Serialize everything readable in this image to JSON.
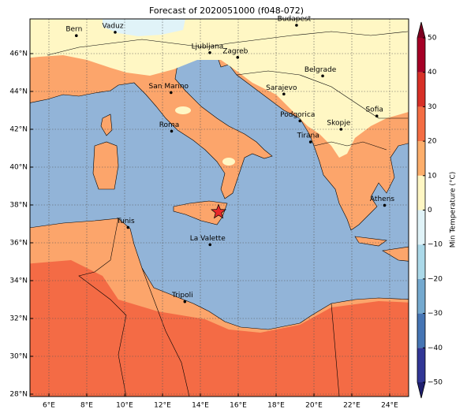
{
  "map": {
    "title": "Forecast of 2020051000 (f048-072)",
    "xlim": [
      5,
      25
    ],
    "ylim": [
      27.875,
      47.833
    ],
    "xticks": [
      {
        "value": 6,
        "label": "6°E"
      },
      {
        "value": 8,
        "label": "8°E"
      },
      {
        "value": 10,
        "label": "10°E"
      },
      {
        "value": 12,
        "label": "12°E"
      },
      {
        "value": 14,
        "label": "14°E"
      },
      {
        "value": 16,
        "label": "16°E"
      },
      {
        "value": 18,
        "label": "18°E"
      },
      {
        "value": 20,
        "label": "20°E"
      },
      {
        "value": 22,
        "label": "22°E"
      },
      {
        "value": 24,
        "label": "24°E"
      }
    ],
    "yticks": [
      {
        "value": 28,
        "label": "28°N"
      },
      {
        "value": 30,
        "label": "30°N"
      },
      {
        "value": 32,
        "label": "32°N"
      },
      {
        "value": 34,
        "label": "34°N"
      },
      {
        "value": 36,
        "label": "36°N"
      },
      {
        "value": 38,
        "label": "38°N"
      },
      {
        "value": 40,
        "label": "40°N"
      },
      {
        "value": 42,
        "label": "42°N"
      },
      {
        "value": 44,
        "label": "44°N"
      },
      {
        "value": 46,
        "label": "46°N"
      }
    ],
    "grid": true,
    "cities": [
      {
        "name": "Bern",
        "lon": 7.45,
        "lat": 46.95
      },
      {
        "name": "Vaduz",
        "lon": 9.5,
        "lat": 47.13
      },
      {
        "name": "Budapest",
        "lon": 19.08,
        "lat": 47.5
      },
      {
        "name": "Ljubljana",
        "lon": 14.5,
        "lat": 46.05
      },
      {
        "name": "Zagreb",
        "lon": 15.97,
        "lat": 45.8
      },
      {
        "name": "Belgrade",
        "lon": 20.46,
        "lat": 44.82
      },
      {
        "name": "San Marino",
        "lon": 12.45,
        "lat": 43.94
      },
      {
        "name": "Sarajevo",
        "lon": 18.41,
        "lat": 43.86
      },
      {
        "name": "Sofia",
        "lon": 23.32,
        "lat": 42.7
      },
      {
        "name": "Podgorica",
        "lon": 19.26,
        "lat": 42.44
      },
      {
        "name": "Skopje",
        "lon": 21.43,
        "lat": 42.0
      },
      {
        "name": "Roma",
        "lon": 12.48,
        "lat": 41.9
      },
      {
        "name": "Tirana",
        "lon": 19.82,
        "lat": 41.33
      },
      {
        "name": "Athens",
        "lon": 23.73,
        "lat": 37.98
      },
      {
        "name": "Tunis",
        "lon": 10.18,
        "lat": 36.81
      },
      {
        "name": "La Valette",
        "lon": 14.51,
        "lat": 35.9
      },
      {
        "name": "Tripoli",
        "lon": 13.18,
        "lat": 32.89
      }
    ],
    "marker": {
      "lon": 14.96,
      "lat": 37.63,
      "color": "#e8282a"
    },
    "colorbar": {
      "label": "Min Temperature (°C)",
      "ticks": [
        {
          "value": -50,
          "label": "−50"
        },
        {
          "value": -40,
          "label": "−40"
        },
        {
          "value": -30,
          "label": "−30"
        },
        {
          "value": -20,
          "label": "−20"
        },
        {
          "value": -10,
          "label": "−10"
        },
        0,
        10,
        20,
        30,
        40,
        50
      ],
      "colors": [
        "#313695",
        "#4575b4",
        "#74a9cf",
        "#abd9e9",
        "#e0f3f8",
        "#fff7c4",
        "#fdae6b",
        "#f46d43",
        "#d73027",
        "#a50026"
      ],
      "under_color": "#1f1f6e",
      "over_color": "#7a0020"
    }
  }
}
